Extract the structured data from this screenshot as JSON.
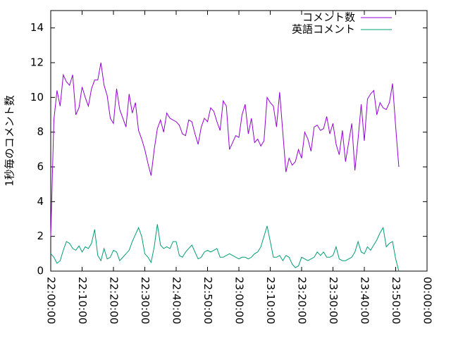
{
  "chart_data": {
    "type": "line",
    "ylabel": "1秒毎のコメント数",
    "x": [
      "22:00:00",
      "22:01:00",
      "22:02:00",
      "22:03:00",
      "22:04:00",
      "22:05:00",
      "22:06:00",
      "22:07:00",
      "22:08:00",
      "22:09:00",
      "22:10:00",
      "22:11:00",
      "22:12:00",
      "22:13:00",
      "22:14:00",
      "22:15:00",
      "22:16:00",
      "22:17:00",
      "22:18:00",
      "22:19:00",
      "22:20:00",
      "22:21:00",
      "22:22:00",
      "22:23:00",
      "22:24:00",
      "22:25:00",
      "22:26:00",
      "22:27:00",
      "22:28:00",
      "22:29:00",
      "22:30:00",
      "22:31:00",
      "22:32:00",
      "22:33:00",
      "22:34:00",
      "22:35:00",
      "22:36:00",
      "22:37:00",
      "22:38:00",
      "22:39:00",
      "22:40:00",
      "22:41:00",
      "22:42:00",
      "22:43:00",
      "22:44:00",
      "22:45:00",
      "22:46:00",
      "22:47:00",
      "22:48:00",
      "22:49:00",
      "22:50:00",
      "22:51:00",
      "22:52:00",
      "22:53:00",
      "22:54:00",
      "22:55:00",
      "22:56:00",
      "22:57:00",
      "22:58:00",
      "22:59:00",
      "23:00:00",
      "23:01:00",
      "23:02:00",
      "23:03:00",
      "23:04:00",
      "23:05:00",
      "23:06:00",
      "23:07:00",
      "23:08:00",
      "23:09:00",
      "23:10:00",
      "23:11:00",
      "23:12:00",
      "23:13:00",
      "23:14:00",
      "23:15:00",
      "23:16:00",
      "23:17:00",
      "23:18:00",
      "23:19:00",
      "23:20:00",
      "23:21:00",
      "23:22:00",
      "23:23:00",
      "23:24:00",
      "23:25:00",
      "23:26:00",
      "23:27:00",
      "23:28:00",
      "23:29:00",
      "23:30:00",
      "23:31:00",
      "23:32:00",
      "23:33:00",
      "23:34:00",
      "23:35:00",
      "23:36:00",
      "23:37:00",
      "23:38:00",
      "23:39:00",
      "23:40:00",
      "23:41:00",
      "23:42:00",
      "23:43:00",
      "23:44:00",
      "23:45:00",
      "23:46:00",
      "23:47:00",
      "23:48:00",
      "23:49:00",
      "23:50:00",
      "23:51:00"
    ],
    "series": [
      {
        "name": "コメント数",
        "color": "#9400d3",
        "values": [
          2.0,
          8.7,
          10.4,
          9.5,
          11.3,
          10.9,
          10.7,
          11.3,
          9.0,
          9.4,
          10.6,
          10.0,
          9.5,
          10.5,
          11.0,
          11.0,
          12.0,
          10.7,
          10.1,
          8.8,
          8.5,
          10.5,
          9.3,
          8.8,
          8.3,
          10.2,
          9.1,
          9.7,
          8.1,
          7.6,
          7.0,
          6.2,
          5.5,
          7.0,
          8.2,
          8.7,
          8.0,
          9.1,
          8.8,
          8.7,
          8.6,
          8.4,
          7.9,
          7.8,
          8.7,
          8.6,
          7.9,
          7.3,
          8.3,
          8.8,
          8.6,
          9.4,
          9.2,
          8.6,
          8.1,
          9.8,
          9.5,
          7.0,
          7.4,
          7.8,
          7.7,
          9.0,
          9.6,
          7.9,
          8.8,
          7.4,
          7.6,
          7.2,
          7.5,
          10.0,
          9.7,
          9.5,
          8.3,
          10.3,
          8.0,
          5.7,
          6.5,
          6.1,
          6.3,
          7.0,
          6.5,
          8.0,
          7.6,
          6.9,
          8.3,
          8.4,
          8.1,
          8.2,
          8.9,
          7.9,
          8.5,
          7.3,
          6.7,
          8.1,
          6.3,
          7.4,
          8.5,
          5.8,
          7.6,
          9.6,
          7.5,
          9.9,
          10.2,
          10.4,
          9.0,
          9.7,
          9.4,
          9.3,
          9.7,
          10.8,
          8.3,
          6.0
        ]
      },
      {
        "name": "英語コメント",
        "color": "#009e73",
        "values": [
          1.0,
          0.8,
          0.45,
          0.6,
          1.2,
          1.7,
          1.6,
          1.3,
          1.2,
          1.45,
          1.1,
          1.4,
          1.3,
          1.6,
          2.4,
          0.9,
          0.6,
          1.3,
          0.7,
          0.8,
          1.2,
          1.1,
          0.6,
          0.8,
          1.0,
          1.2,
          1.7,
          2.1,
          2.5,
          2.0,
          1.0,
          0.8,
          0.5,
          1.4,
          2.7,
          1.5,
          1.3,
          1.4,
          1.3,
          1.7,
          1.7,
          0.9,
          0.8,
          1.1,
          1.3,
          1.5,
          1.1,
          0.7,
          0.8,
          1.1,
          1.2,
          1.1,
          1.2,
          1.3,
          0.8,
          0.8,
          0.9,
          1.0,
          0.9,
          0.8,
          0.7,
          0.8,
          0.8,
          0.7,
          0.8,
          1.0,
          1.1,
          1.4,
          2.0,
          2.6,
          1.7,
          0.8,
          0.8,
          0.9,
          0.6,
          0.9,
          0.8,
          0.4,
          0.2,
          0.3,
          0.8,
          0.7,
          0.6,
          0.7,
          0.8,
          1.1,
          0.9,
          1.1,
          0.8,
          0.8,
          0.9,
          1.4,
          0.7,
          0.6,
          0.6,
          0.7,
          0.8,
          1.1,
          1.7,
          1.1,
          1.0,
          1.4,
          1.2,
          1.5,
          1.8,
          2.2,
          2.5,
          1.4,
          1.6,
          1.7,
          0.7,
          0.0
        ]
      }
    ],
    "xlim": [
      "22:00:00",
      "00:00:00"
    ],
    "xticks": [
      "22:00:00",
      "22:10:00",
      "22:20:00",
      "22:30:00",
      "22:40:00",
      "22:50:00",
      "23:00:00",
      "23:10:00",
      "23:20:00",
      "23:30:00",
      "23:40:00",
      "23:50:00",
      "00:00:00"
    ],
    "ylim": [
      0,
      15
    ],
    "yticks": [
      0,
      2,
      4,
      6,
      8,
      10,
      12,
      14
    ],
    "legend": "top-right"
  }
}
